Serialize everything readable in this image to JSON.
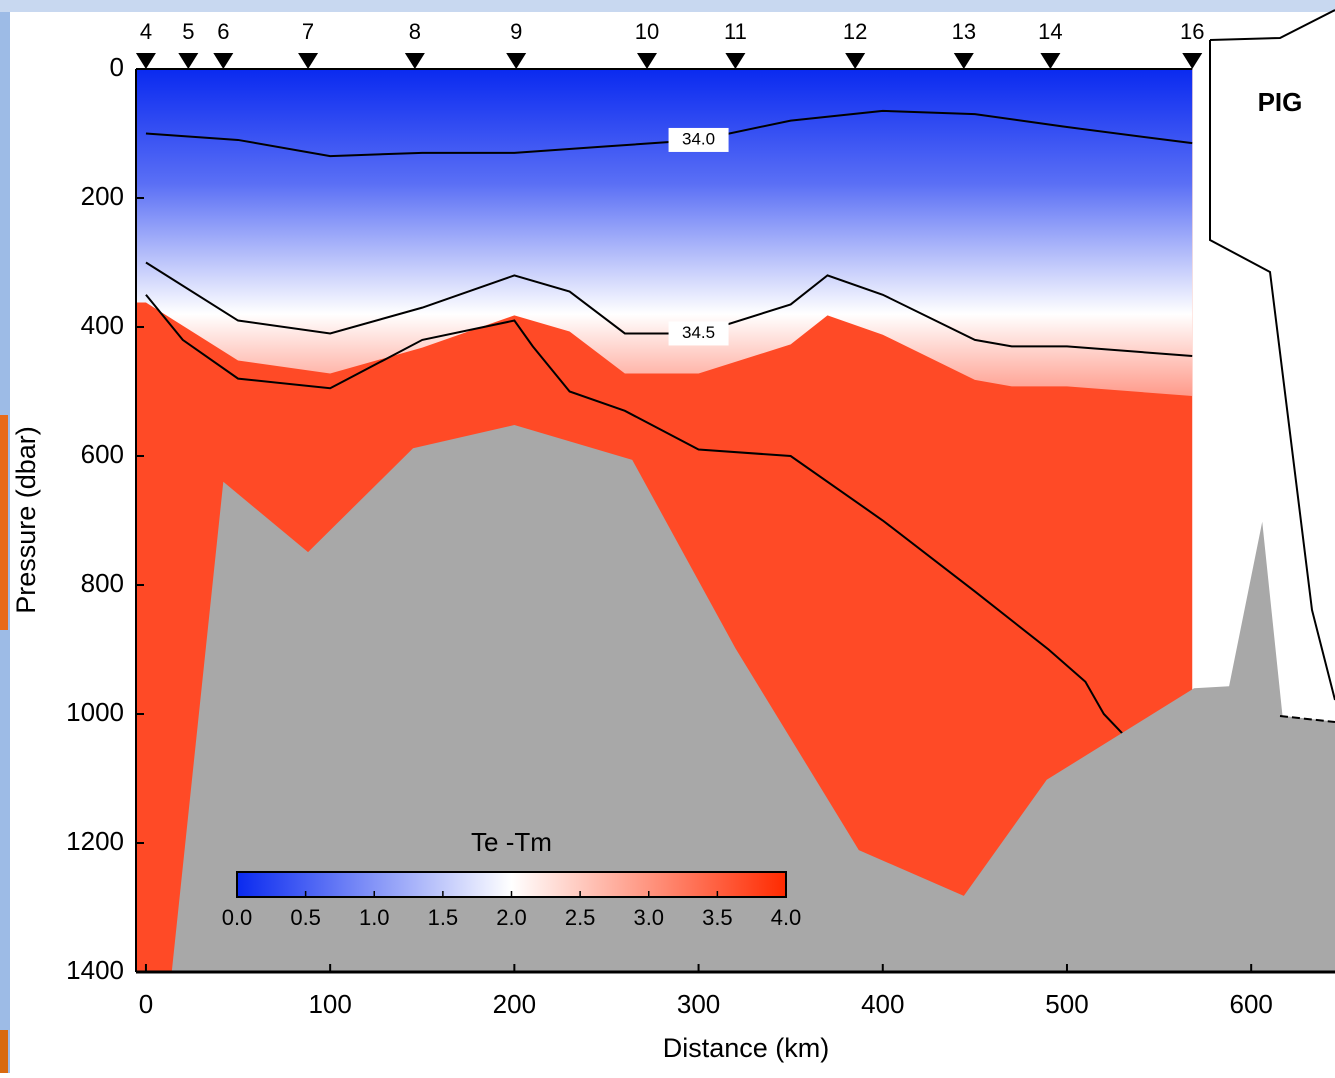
{
  "chart_data": {
    "type": "section",
    "xlabel": "Distance (km)",
    "ylabel": "Pressure (dbar)",
    "xlim": [
      -5.4,
      645.5
    ],
    "ylim": [
      0,
      1400
    ],
    "xticks": [
      0,
      100,
      200,
      300,
      400,
      500,
      600
    ],
    "yticks": [
      0,
      200,
      400,
      600,
      800,
      1000,
      1200,
      1400
    ],
    "y_inverted": true,
    "stations": {
      "labels": [
        "4",
        "5",
        "6",
        "7",
        "8",
        "9",
        "10",
        "11",
        "12",
        "13",
        "14",
        "16"
      ],
      "x": [
        0,
        23,
        42,
        88,
        146,
        201,
        272,
        320,
        385,
        444,
        491,
        568
      ]
    },
    "colorbar": {
      "title": "Te -Tm",
      "colors": [
        "#0a2af0",
        "#ffffff",
        "#ff2a00"
      ],
      "lim": [
        0,
        4
      ],
      "ticks": [
        {
          "value": 0,
          "label": "0.0"
        },
        {
          "value": 0.5,
          "label": "0.5"
        },
        {
          "value": 1,
          "label": "1.0"
        },
        {
          "value": 1.5,
          "label": "1.5"
        },
        {
          "value": 2,
          "label": "2.0"
        },
        {
          "value": 2.5,
          "label": "2.5"
        },
        {
          "value": 3,
          "label": "3.0"
        },
        {
          "value": 3.5,
          "label": "3.5"
        },
        {
          "value": 4,
          "label": "4.0"
        }
      ]
    },
    "contours": [
      {
        "label": "34.0",
        "x": [
          0,
          50,
          100,
          150,
          200,
          250,
          300,
          350,
          400,
          450,
          500,
          568
        ],
        "y": [
          100,
          110,
          135,
          130,
          130,
          120,
          110,
          80,
          65,
          70,
          90,
          115
        ]
      },
      {
        "label": "34.5",
        "x": [
          0,
          50,
          100,
          150,
          200,
          230,
          260,
          300,
          350,
          370,
          400,
          450,
          470,
          500,
          568
        ],
        "y": [
          300,
          390,
          410,
          370,
          320,
          345,
          410,
          410,
          365,
          320,
          350,
          420,
          430,
          430,
          445
        ]
      },
      {
        "x": [
          0,
          20,
          50,
          100,
          150,
          200,
          210,
          230,
          260,
          300,
          350,
          400,
          450,
          490,
          510,
          520,
          530
        ],
        "y": [
          350,
          420,
          480,
          495,
          420,
          390,
          430,
          500,
          530,
          590,
          600,
          700,
          810,
          900,
          950,
          1000,
          1030
        ]
      }
    ],
    "bathymetry": {
      "color": "#a8a8a8",
      "x": [
        14,
        42,
        88,
        145,
        200,
        264,
        320,
        387,
        444,
        489,
        569,
        588,
        606,
        617,
        646
      ],
      "y": [
        1400,
        640,
        749,
        588,
        552,
        606,
        898,
        1211,
        1282,
        1102,
        960,
        957,
        702,
        1003,
        1012
      ]
    },
    "annotation": "PIG"
  }
}
